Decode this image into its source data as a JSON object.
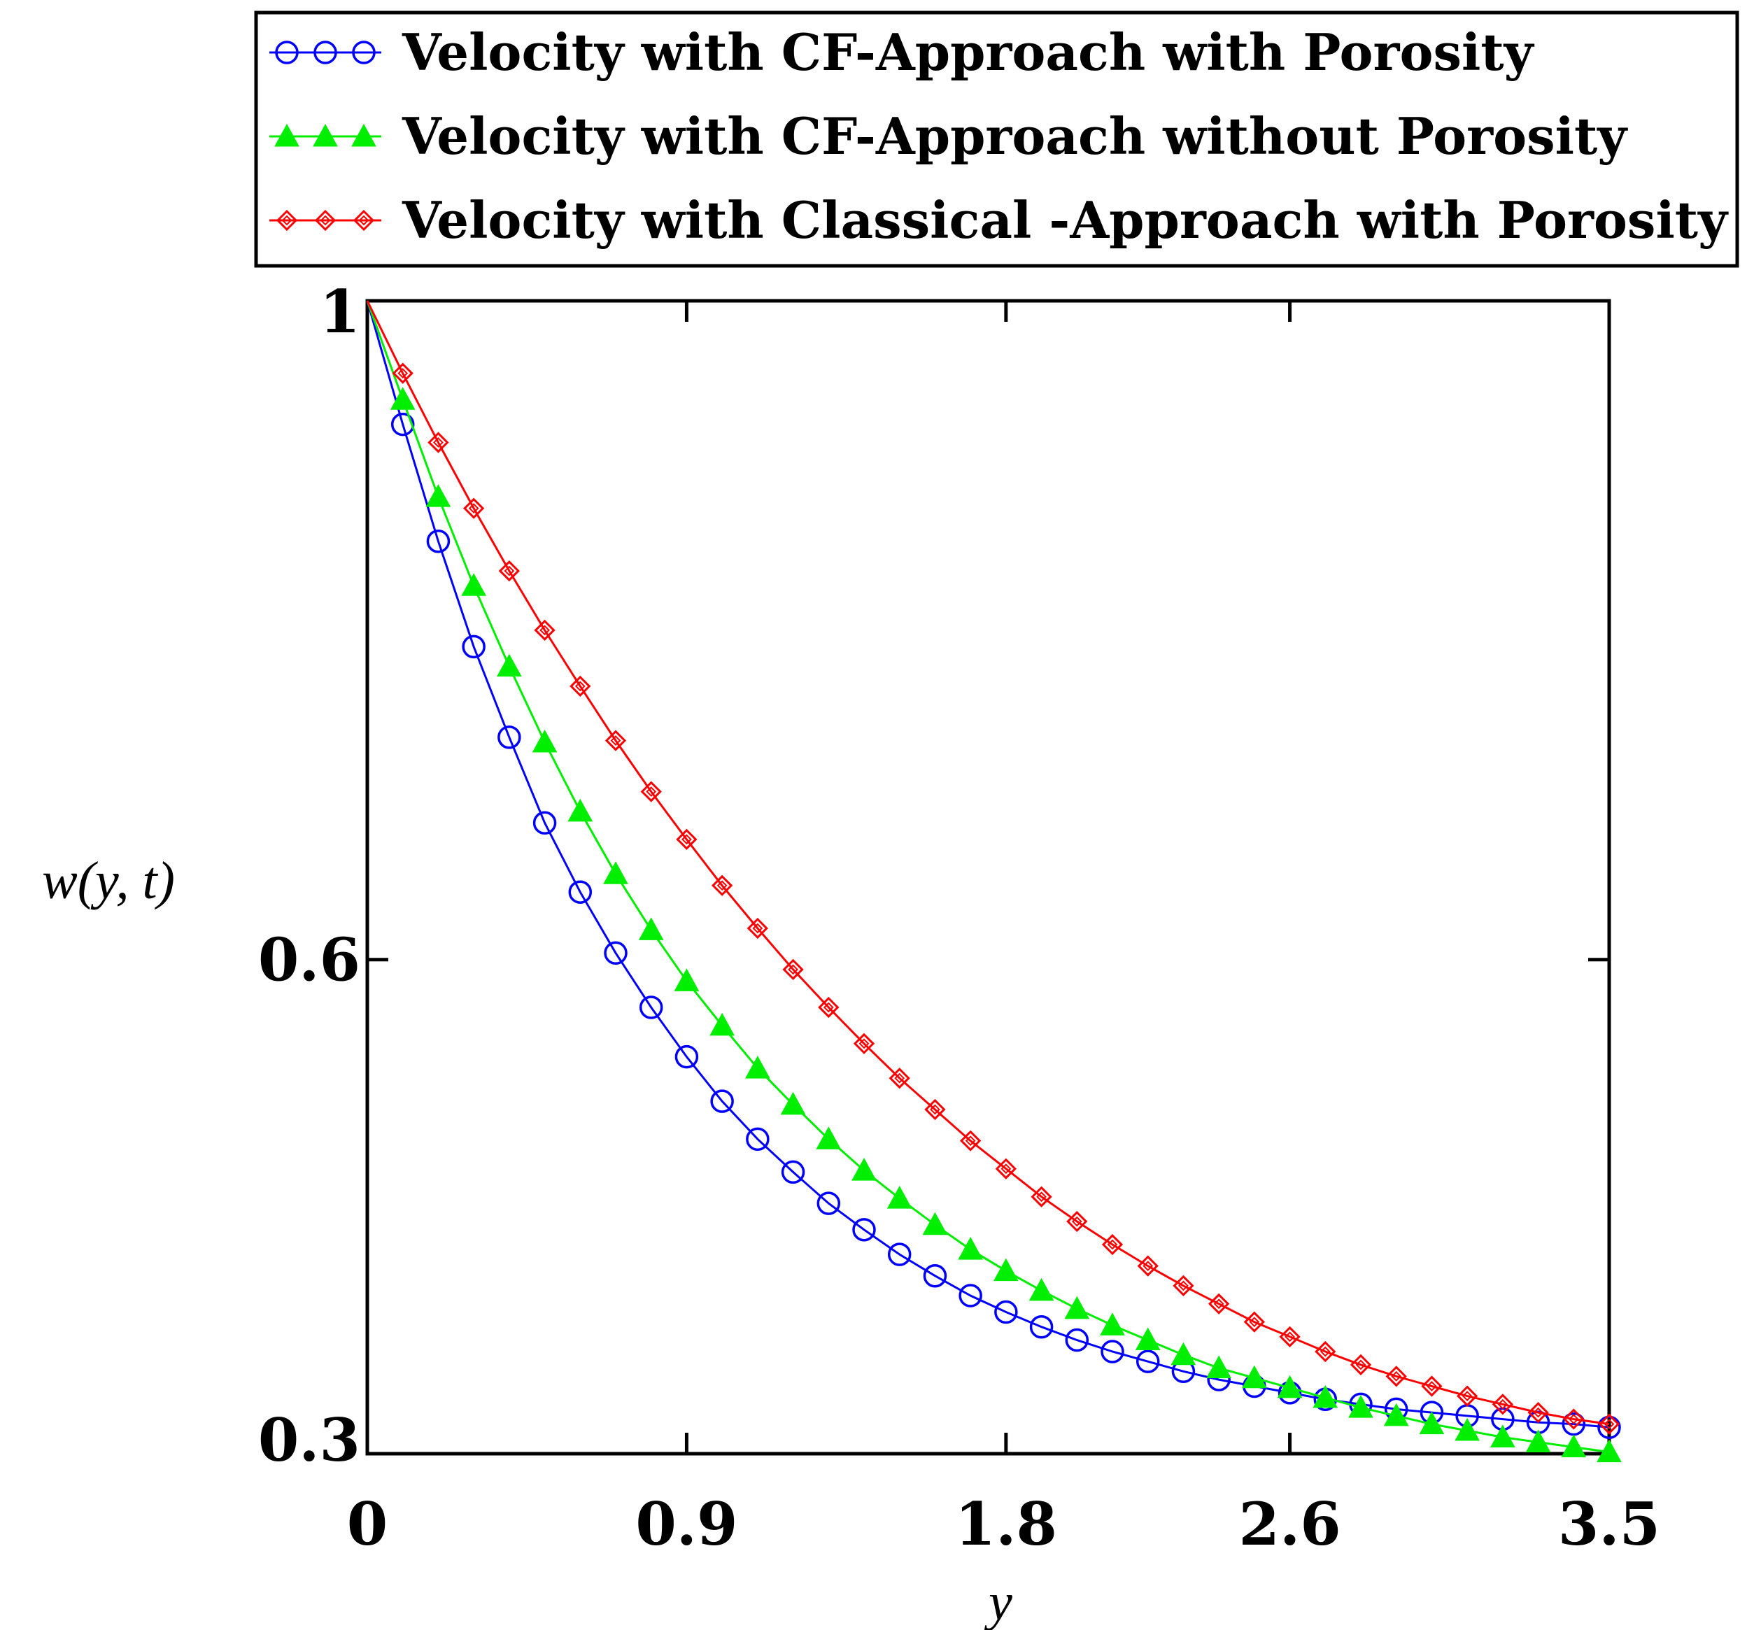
{
  "chart_data": {
    "type": "line",
    "title": "",
    "xlabel": "y",
    "ylabel": "w(y, t)",
    "xlim": [
      0,
      3.5
    ],
    "ylim": [
      0.3,
      1
    ],
    "x_ticks": [
      "0",
      "0.9",
      "1.8",
      "2.6",
      "3.5"
    ],
    "x_tick_values": [
      0,
      0.9,
      1.8,
      2.6,
      3.5
    ],
    "y_ticks": [
      "0.3",
      "0.6",
      "1"
    ],
    "y_tick_values": [
      0.3,
      0.6,
      1.0
    ],
    "grid": false,
    "legend_position": "top",
    "x": [
      0,
      0.1,
      0.2,
      0.3,
      0.4,
      0.5,
      0.6,
      0.7,
      0.8,
      0.9,
      1.0,
      1.1,
      1.2,
      1.3,
      1.4,
      1.5,
      1.6,
      1.7,
      1.8,
      1.9,
      2.0,
      2.1,
      2.2,
      2.3,
      2.4,
      2.5,
      2.6,
      2.7,
      2.8,
      2.9,
      3.0,
      3.1,
      3.2,
      3.3,
      3.4,
      3.5
    ],
    "series": [
      {
        "name": "Velocity with CF-Approach with Porosity",
        "color": "#0000ff",
        "marker": "circle",
        "values": [
          1.0,
          0.925,
          0.854,
          0.79,
          0.735,
          0.683,
          0.641,
          0.604,
          0.571,
          0.541,
          0.514,
          0.491,
          0.471,
          0.452,
          0.436,
          0.421,
          0.408,
          0.396,
          0.386,
          0.377,
          0.369,
          0.362,
          0.356,
          0.35,
          0.345,
          0.341,
          0.337,
          0.333,
          0.33,
          0.327,
          0.325,
          0.323,
          0.321,
          0.319,
          0.318,
          0.316
        ]
      },
      {
        "name": "Velocity with CF-Approach without Porosity",
        "color": "#00ee00",
        "marker": "triangle",
        "values": [
          1.0,
          0.94,
          0.881,
          0.827,
          0.778,
          0.732,
          0.69,
          0.652,
          0.618,
          0.587,
          0.56,
          0.534,
          0.512,
          0.491,
          0.472,
          0.455,
          0.439,
          0.424,
          0.411,
          0.399,
          0.388,
          0.378,
          0.369,
          0.36,
          0.352,
          0.346,
          0.34,
          0.334,
          0.328,
          0.323,
          0.318,
          0.314,
          0.31,
          0.307,
          0.304,
          0.301
        ]
      },
      {
        "name": "Velocity with Classical -Approach with Porosity",
        "color": "#ff0000",
        "marker": "diamond",
        "values": [
          1.0,
          0.956,
          0.914,
          0.874,
          0.836,
          0.8,
          0.766,
          0.733,
          0.702,
          0.673,
          0.645,
          0.619,
          0.594,
          0.571,
          0.549,
          0.528,
          0.509,
          0.49,
          0.473,
          0.456,
          0.441,
          0.427,
          0.414,
          0.402,
          0.391,
          0.38,
          0.371,
          0.362,
          0.354,
          0.347,
          0.341,
          0.335,
          0.33,
          0.325,
          0.321,
          0.318
        ]
      }
    ]
  }
}
